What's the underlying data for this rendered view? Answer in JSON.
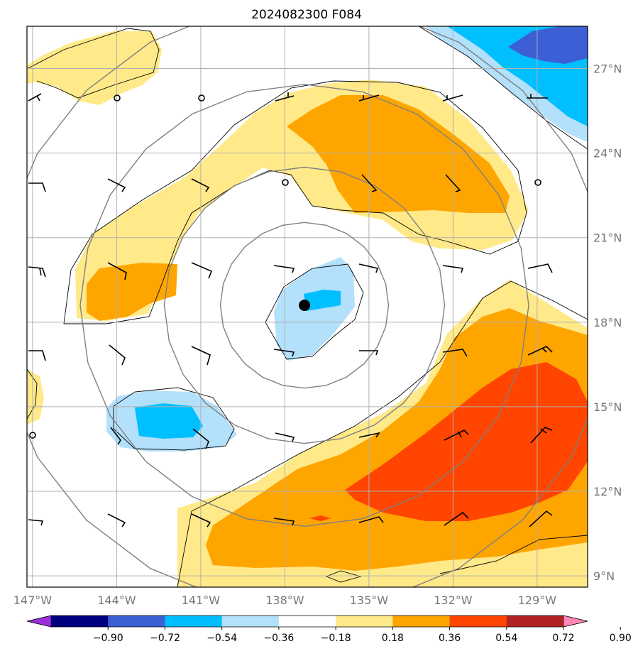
{
  "title": "2024082300 F084",
  "map": {
    "lon_range": [
      -147.2,
      -127.2
    ],
    "lat_range": [
      8.6,
      28.5
    ],
    "lon_ticks": [
      {
        "value": -147,
        "label": "147°W"
      },
      {
        "value": -144,
        "label": "144°W"
      },
      {
        "value": -141,
        "label": "141°W"
      },
      {
        "value": -138,
        "label": "138°W"
      },
      {
        "value": -135,
        "label": "135°W"
      },
      {
        "value": -132,
        "label": "132°W"
      },
      {
        "value": -129,
        "label": "129°W"
      }
    ],
    "lat_ticks": [
      {
        "value": 9,
        "label": "9°N"
      },
      {
        "value": 12,
        "label": "12°N"
      },
      {
        "value": 15,
        "label": "15°N"
      },
      {
        "value": 18,
        "label": "18°N"
      },
      {
        "value": 21,
        "label": "21°N"
      },
      {
        "value": 24,
        "label": "24°N"
      },
      {
        "value": 27,
        "label": "27°N"
      }
    ],
    "storm_center": {
      "lon": -137.3,
      "lat": 18.6
    },
    "range_rings_deg": [
      3,
      5,
      8,
      11
    ],
    "colors": {
      "grid": "#b0b0b0",
      "ring": "#808080",
      "c_neg_018_036": "#b3e0fb",
      "c_neg_036_054": "#00bfff",
      "c_neg_054_072": "#3c5fd6",
      "c_pos_018_036": "#ffe989",
      "c_pos_036_054": "#ffa500",
      "c_pos_054_072": "#ff4500"
    }
  },
  "colorbar": {
    "ticks": [
      "−0.90",
      "−0.72",
      "−0.54",
      "−0.36",
      "−0.18",
      "0.18",
      "0.36",
      "0.54",
      "0.72",
      "0.90"
    ],
    "colors": [
      "#9b30d8",
      "#00007f",
      "#3c5fd6",
      "#00bfff",
      "#b3e0fb",
      "#ffffff",
      "#ffe989",
      "#ffa500",
      "#ff4500",
      "#b22222",
      "#ff88b8"
    ]
  }
}
